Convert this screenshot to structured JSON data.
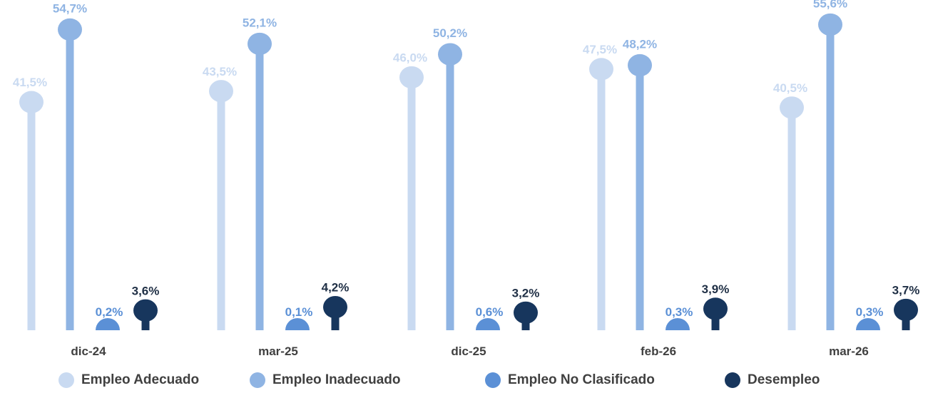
{
  "chart_data": {
    "type": "lollipop",
    "categories": [
      "dic-24",
      "mar-25",
      "dic-25",
      "feb-26",
      "mar-26"
    ],
    "series": [
      {
        "name": "Empleo Adecuado",
        "color": "#c9daf1",
        "values": [
          41.5,
          43.5,
          46.0,
          47.5,
          40.5
        ],
        "labels": [
          "41,5%",
          "43,5%",
          "46,0%",
          "47,5%",
          "40,5%"
        ]
      },
      {
        "name": "Empleo Inadecuado",
        "color": "#8fb4e3",
        "values": [
          54.7,
          52.1,
          50.2,
          48.2,
          55.6
        ],
        "labels": [
          "54,7%",
          "52,1%",
          "50,2%",
          "48,2%",
          "55,6%"
        ]
      },
      {
        "name": "Empleo No Clasificado",
        "color": "#5b90d6",
        "values": [
          0.2,
          0.1,
          0.6,
          0.3,
          0.3
        ],
        "labels": [
          "0,2%",
          "0,1%",
          "0,6%",
          "0,3%",
          "0,3%"
        ]
      },
      {
        "name": "Desempleo",
        "color": "#17365d",
        "values": [
          3.6,
          4.2,
          3.2,
          3.9,
          3.7
        ],
        "labels": [
          "3,6%",
          "4,2%",
          "3,2%",
          "3,9%",
          "3,7%"
        ]
      }
    ],
    "ylim": [
      0,
      58
    ],
    "legend_position": "bottom",
    "grid": false
  }
}
